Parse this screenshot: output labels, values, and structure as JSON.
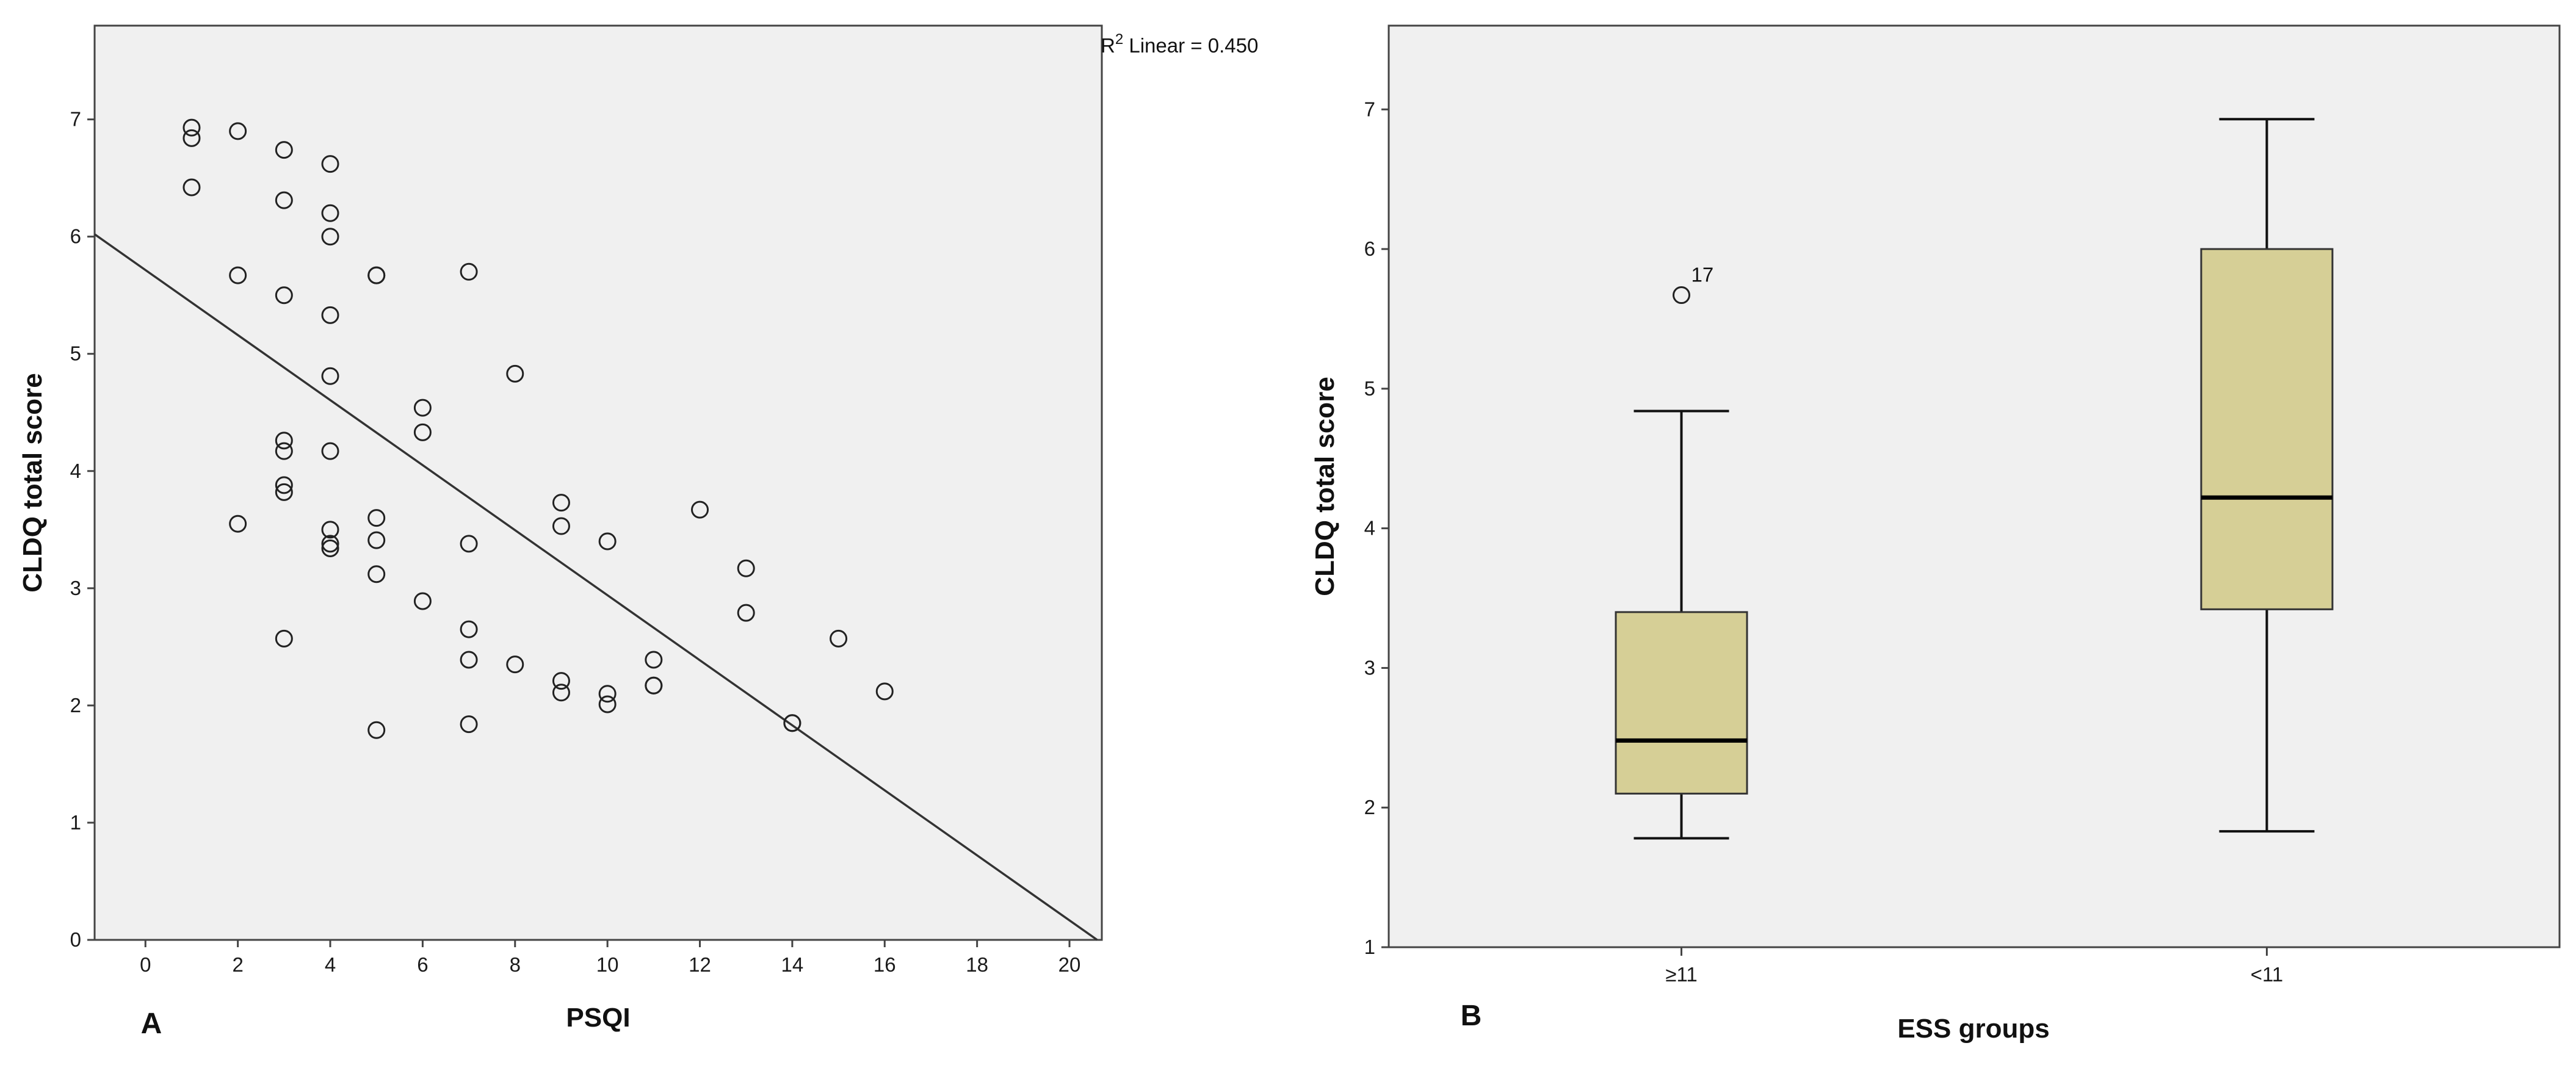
{
  "chart_data": [
    {
      "type": "scatter",
      "panel_label": "A",
      "xlabel": "PSQI",
      "ylabel": "CLDQ total score",
      "xlim": [
        -1.1,
        20.7
      ],
      "ylim": [
        0,
        7.8
      ],
      "xticks": [
        0,
        2,
        4,
        6,
        8,
        10,
        12,
        14,
        16,
        18,
        20
      ],
      "yticks": [
        0,
        1,
        2,
        3,
        4,
        5,
        6,
        7
      ],
      "annotation": {
        "r2_prefix": "R",
        "r2_sup": "2",
        "r2_text": " Linear = 0.450"
      },
      "fit_line": {
        "x": [
          -1.1,
          20.6
        ],
        "y": [
          6.02,
          0.0
        ]
      },
      "points": [
        {
          "x": 1,
          "y": 6.93
        },
        {
          "x": 1,
          "y": 6.84
        },
        {
          "x": 1,
          "y": 6.42
        },
        {
          "x": 2,
          "y": 6.9
        },
        {
          "x": 2,
          "y": 5.67
        },
        {
          "x": 2,
          "y": 3.55
        },
        {
          "x": 3,
          "y": 6.74
        },
        {
          "x": 3,
          "y": 6.31
        },
        {
          "x": 3,
          "y": 5.5
        },
        {
          "x": 3,
          "y": 4.26
        },
        {
          "x": 3,
          "y": 4.17
        },
        {
          "x": 3,
          "y": 3.88
        },
        {
          "x": 3,
          "y": 3.82
        },
        {
          "x": 3,
          "y": 2.57
        },
        {
          "x": 4,
          "y": 6.62
        },
        {
          "x": 4,
          "y": 6.2
        },
        {
          "x": 4,
          "y": 6.0
        },
        {
          "x": 4,
          "y": 5.33
        },
        {
          "x": 4,
          "y": 4.81
        },
        {
          "x": 4,
          "y": 4.17
        },
        {
          "x": 4,
          "y": 3.5
        },
        {
          "x": 4,
          "y": 3.38
        },
        {
          "x": 4,
          "y": 3.34
        },
        {
          "x": 5,
          "y": 5.67
        },
        {
          "x": 5,
          "y": 5.67
        },
        {
          "x": 5,
          "y": 3.6
        },
        {
          "x": 5,
          "y": 3.41
        },
        {
          "x": 5,
          "y": 3.12
        },
        {
          "x": 5,
          "y": 1.79
        },
        {
          "x": 6,
          "y": 4.54
        },
        {
          "x": 6,
          "y": 4.33
        },
        {
          "x": 6,
          "y": 2.89
        },
        {
          "x": 7,
          "y": 5.7
        },
        {
          "x": 7,
          "y": 3.38
        },
        {
          "x": 7,
          "y": 2.65
        },
        {
          "x": 7,
          "y": 2.39
        },
        {
          "x": 7,
          "y": 1.84
        },
        {
          "x": 8,
          "y": 4.83
        },
        {
          "x": 8,
          "y": 2.35
        },
        {
          "x": 9,
          "y": 3.73
        },
        {
          "x": 9,
          "y": 3.53
        },
        {
          "x": 9,
          "y": 2.21
        },
        {
          "x": 9,
          "y": 2.11
        },
        {
          "x": 10,
          "y": 3.4
        },
        {
          "x": 10,
          "y": 2.1
        },
        {
          "x": 10,
          "y": 2.01
        },
        {
          "x": 11,
          "y": 2.39
        },
        {
          "x": 11,
          "y": 2.17
        },
        {
          "x": 11,
          "y": 2.17
        },
        {
          "x": 12,
          "y": 3.67
        },
        {
          "x": 13,
          "y": 3.17
        },
        {
          "x": 13,
          "y": 2.79
        },
        {
          "x": 14,
          "y": 1.85
        },
        {
          "x": 14,
          "y": 1.85
        },
        {
          "x": 15,
          "y": 2.57
        },
        {
          "x": 16,
          "y": 2.12
        }
      ]
    },
    {
      "type": "box",
      "panel_label": "B",
      "xlabel": "ESS groups",
      "ylabel": "CLDQ total score",
      "ylim": [
        1,
        7.6
      ],
      "yticks": [
        1,
        2,
        3,
        4,
        5,
        6,
        7
      ],
      "categories": [
        "≥11",
        "<11"
      ],
      "boxes": [
        {
          "category": "≥11",
          "min": 1.78,
          "q1": 2.1,
          "median": 2.48,
          "q3": 3.4,
          "max": 4.84,
          "outliers": [
            {
              "y": 5.67,
              "label": "17"
            }
          ]
        },
        {
          "category": "<11",
          "min": 1.83,
          "q1": 3.42,
          "median": 4.22,
          "q3": 6.0,
          "max": 6.93,
          "outliers": []
        }
      ],
      "box_color": "#d6cf96",
      "plot_bg": "#f0f0f0"
    }
  ]
}
